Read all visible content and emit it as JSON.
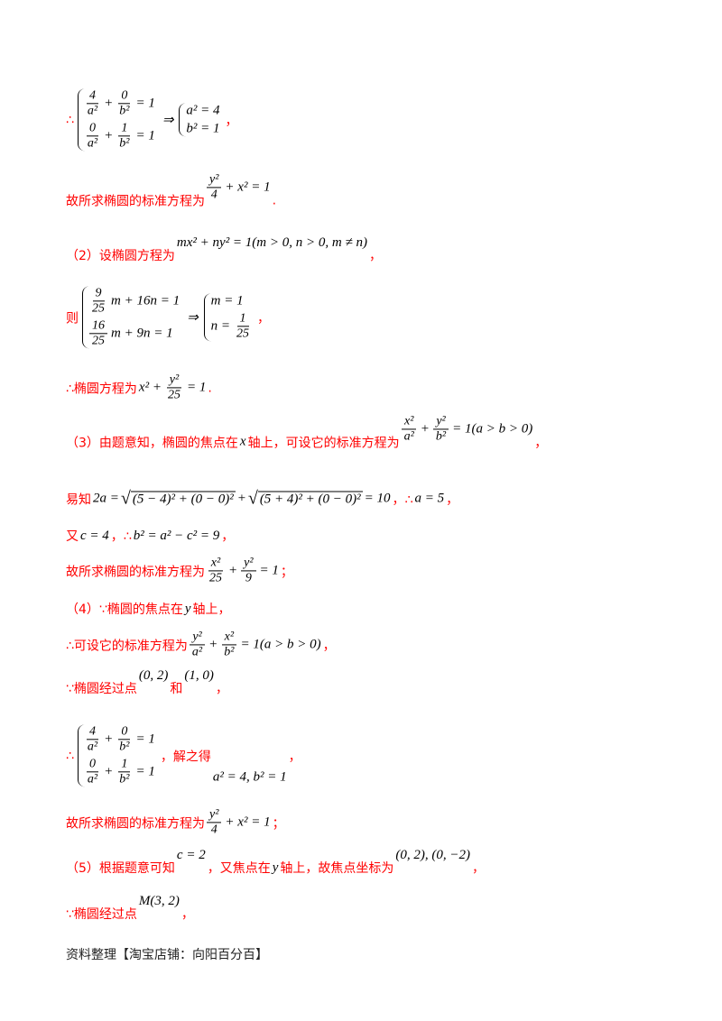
{
  "colors": {
    "text": "#ff0000",
    "math": "#000000",
    "footer": "#222222"
  },
  "lines": [
    {
      "segs": [
        {
          "cn": "∴"
        },
        {
          "sys": [
            [
              {
                "frac": {
                  "n": "4",
                  "d": "a²"
                }
              },
              {
                "m": "+"
              },
              {
                "frac": {
                  "n": "0",
                  "d": "b²"
                }
              },
              {
                "m": "= 1"
              }
            ],
            [
              {
                "frac": {
                  "n": "0",
                  "d": "a²"
                }
              },
              {
                "m": "+"
              },
              {
                "frac": {
                  "n": "1",
                  "d": "b²"
                }
              },
              {
                "m": "= 1"
              }
            ]
          ]
        },
        {
          "m": "⇒"
        },
        {
          "sys": [
            [
              {
                "m": "a² = 4"
              }
            ],
            [
              {
                "m": "b² = 1"
              }
            ]
          ]
        },
        {
          "cn": "，"
        }
      ]
    },
    {
      "segs": [
        {
          "cn": "故所求椭圆的标准方程为"
        },
        {
          "up": [
            {
              "frac": {
                "n": "y²",
                "d": "4"
              }
            },
            {
              "m": "+ x² = 1"
            }
          ]
        },
        {
          "cn": "."
        }
      ]
    },
    {
      "segs": [
        {
          "cn": "（2）设椭圆方程为"
        },
        {
          "up": [
            {
              "m": "mx² + ny² = 1(m > 0, n > 0, m ≠ n)"
            }
          ]
        },
        {
          "cn": "，"
        }
      ]
    },
    {
      "segs": [
        {
          "cn": "则"
        },
        {
          "sys": [
            [
              {
                "frac": {
                  "n": "9",
                  "d": "25"
                }
              },
              {
                "m": "m + 16n = 1"
              }
            ],
            [
              {
                "frac": {
                  "n": "16",
                  "d": "25"
                }
              },
              {
                "m": "m + 9n = 1"
              }
            ]
          ]
        },
        {
          "m": "⇒"
        },
        {
          "sys": [
            [
              {
                "m": "m = 1"
              }
            ],
            [
              {
                "m": "n ="
              },
              {
                "frac": {
                  "n": "1",
                  "d": "25"
                }
              }
            ]
          ]
        },
        {
          "cn": "，"
        }
      ]
    },
    {
      "segs": [
        {
          "cn": "∴椭圆方程为"
        },
        {
          "m": "x² +"
        },
        {
          "frac": {
            "n": "y²",
            "d": "25"
          }
        },
        {
          "m": "= 1"
        },
        {
          "cn": "."
        }
      ]
    },
    {
      "segs": [
        {
          "cn": "（3）由题意知，椭圆的焦点在"
        },
        {
          "m": "x"
        },
        {
          "cn": "轴上，可设它的标准方程为"
        },
        {
          "up": [
            {
              "frac": {
                "n": "x²",
                "d": "a²"
              }
            },
            {
              "m": "+"
            },
            {
              "frac": {
                "n": "y²",
                "d": "b²"
              }
            },
            {
              "m": "= 1(a > b > 0)"
            }
          ]
        },
        {
          "cn": "，"
        }
      ]
    },
    {
      "segs": [
        {
          "cn": "易知"
        },
        {
          "m": "2a ="
        },
        {
          "sqrt": [
            {
              "m": "(5 − 4)² + (0 − 0)²"
            }
          ]
        },
        {
          "m": "+"
        },
        {
          "sqrt": [
            {
              "m": "(5 + 4)² + (0 − 0)²"
            }
          ]
        },
        {
          "m": "= 10"
        },
        {
          "cn": "，∴"
        },
        {
          "m": "a = 5"
        },
        {
          "cn": "，"
        }
      ]
    },
    {
      "segs": [
        {
          "cn": "又"
        },
        {
          "m": "c = 4"
        },
        {
          "cn": "，∴"
        },
        {
          "m": "b² = a² − c² = 9"
        },
        {
          "cn": "，"
        }
      ]
    },
    {
      "segs": [
        {
          "cn": "故所求椭圆的标准方程为"
        },
        {
          "frac": {
            "n": "x²",
            "d": "25"
          }
        },
        {
          "m": "+"
        },
        {
          "frac": {
            "n": "y²",
            "d": "9"
          }
        },
        {
          "m": "= 1"
        },
        {
          "cn": "；"
        }
      ]
    },
    {
      "segs": [
        {
          "cn": "（4）∵椭圆的焦点在"
        },
        {
          "m": "y"
        },
        {
          "cn": "轴上，"
        }
      ]
    },
    {
      "segs": [
        {
          "cn": "∴可设它的标准方程为"
        },
        {
          "frac": {
            "n": "y²",
            "d": "a²"
          }
        },
        {
          "m": "+"
        },
        {
          "frac": {
            "n": "x²",
            "d": "b²"
          }
        },
        {
          "m": "= 1(a > b > 0)"
        },
        {
          "cn": "，"
        }
      ]
    },
    {
      "segs": [
        {
          "cn": "∵椭圆经过点"
        },
        {
          "up": [
            {
              "m": "(0, 2)"
            }
          ]
        },
        {
          "cn": "和"
        },
        {
          "up": [
            {
              "m": "(1, 0)"
            }
          ]
        },
        {
          "cn": "，"
        }
      ]
    },
    {
      "segs": [
        {
          "cn": "∴"
        },
        {
          "sys": [
            [
              {
                "frac": {
                  "n": "4",
                  "d": "a²"
                }
              },
              {
                "m": "+"
              },
              {
                "frac": {
                  "n": "0",
                  "d": "b²"
                }
              },
              {
                "m": "= 1"
              }
            ],
            [
              {
                "frac": {
                  "n": "0",
                  "d": "a²"
                }
              },
              {
                "m": "+"
              },
              {
                "frac": {
                  "n": "1",
                  "d": "b²"
                }
              },
              {
                "m": "= 1"
              }
            ]
          ]
        },
        {
          "cn": "，解之得"
        },
        {
          "down": [
            {
              "m": "a² = 4, b² = 1"
            }
          ]
        },
        {
          "cn": "，"
        }
      ]
    },
    {
      "segs": [
        {
          "cn": "故所求椭圆的标准方程为"
        },
        {
          "frac": {
            "n": "y²",
            "d": "4"
          }
        },
        {
          "m": "+ x² = 1"
        },
        {
          "cn": "；"
        }
      ]
    },
    {
      "segs": [
        {
          "cn": "（5）根据题意可知"
        },
        {
          "up": [
            {
              "m": "c = 2"
            }
          ]
        },
        {
          "cn": "，又焦点在"
        },
        {
          "m": "y"
        },
        {
          "cn": "轴上，故焦点坐标为"
        },
        {
          "up": [
            {
              "m": "(0, 2), (0, −2)"
            }
          ]
        },
        {
          "cn": "，"
        }
      ]
    },
    {
      "segs": [
        {
          "cn": "∵椭圆经过点"
        },
        {
          "up": [
            {
              "m": "M(3, 2)"
            }
          ]
        },
        {
          "cn": "，"
        }
      ]
    },
    {
      "segs": [
        {
          "k": "资料整理【淘宝店铺：向阳百分百】"
        }
      ]
    }
  ]
}
